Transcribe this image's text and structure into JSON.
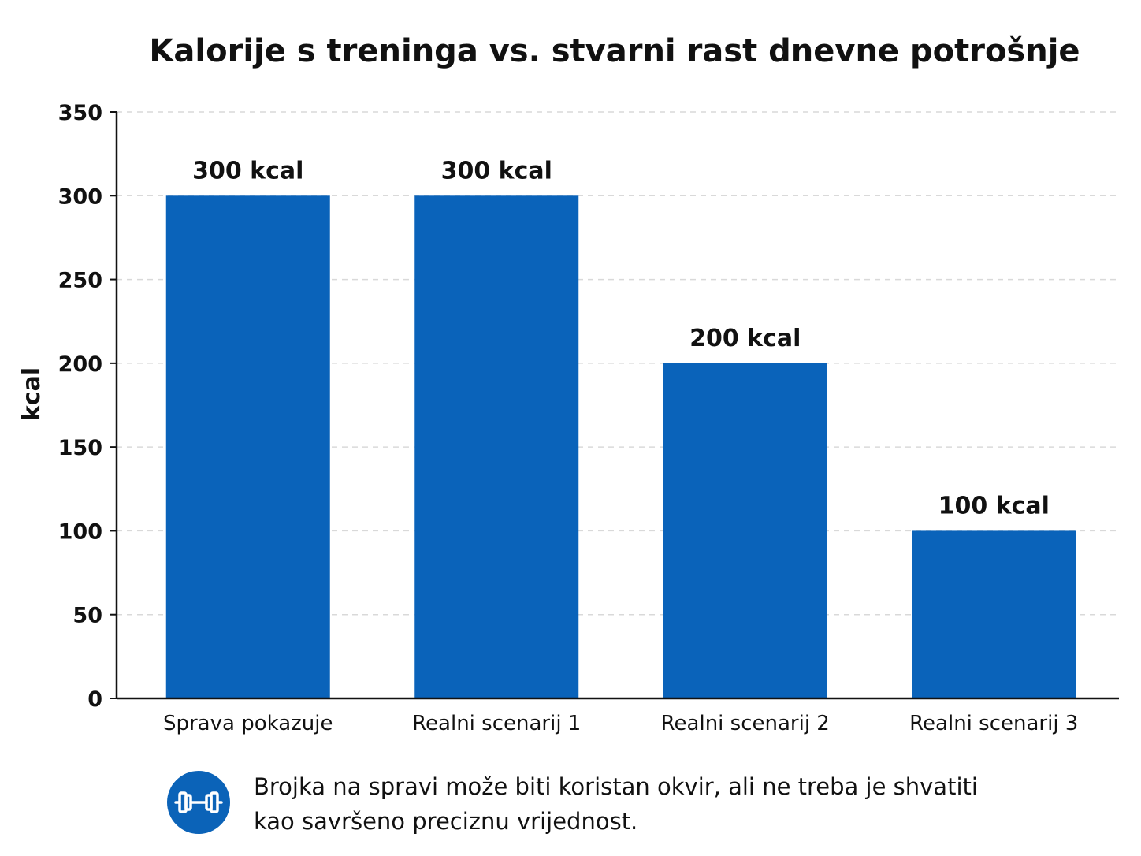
{
  "chart_data": {
    "type": "bar",
    "title": "Kalorije s treninga vs. stvarni rast dnevne potrošnje",
    "ylabel": "kcal",
    "xlabel": "",
    "categories": [
      "Sprava pokazuje",
      "Realni scenarij 1",
      "Realni scenarij 2",
      "Realni scenarij 3"
    ],
    "values": [
      300,
      300,
      200,
      100
    ],
    "data_labels": [
      "300 kcal",
      "300 kcal",
      "200 kcal",
      "100 kcal"
    ],
    "ylim": [
      0,
      350
    ],
    "yticks": [
      0,
      50,
      100,
      150,
      200,
      250,
      300,
      350
    ],
    "grid": true,
    "legend": "none",
    "bar_color": "#0a63ba"
  },
  "note": {
    "icon": "dumbbell-icon",
    "icon_color": "#0b63b8",
    "lines": [
      "Brojka na spravi može biti koristan okvir, ali ne treba je shvatiti",
      "kao savršeno preciznu vrijednost."
    ]
  }
}
